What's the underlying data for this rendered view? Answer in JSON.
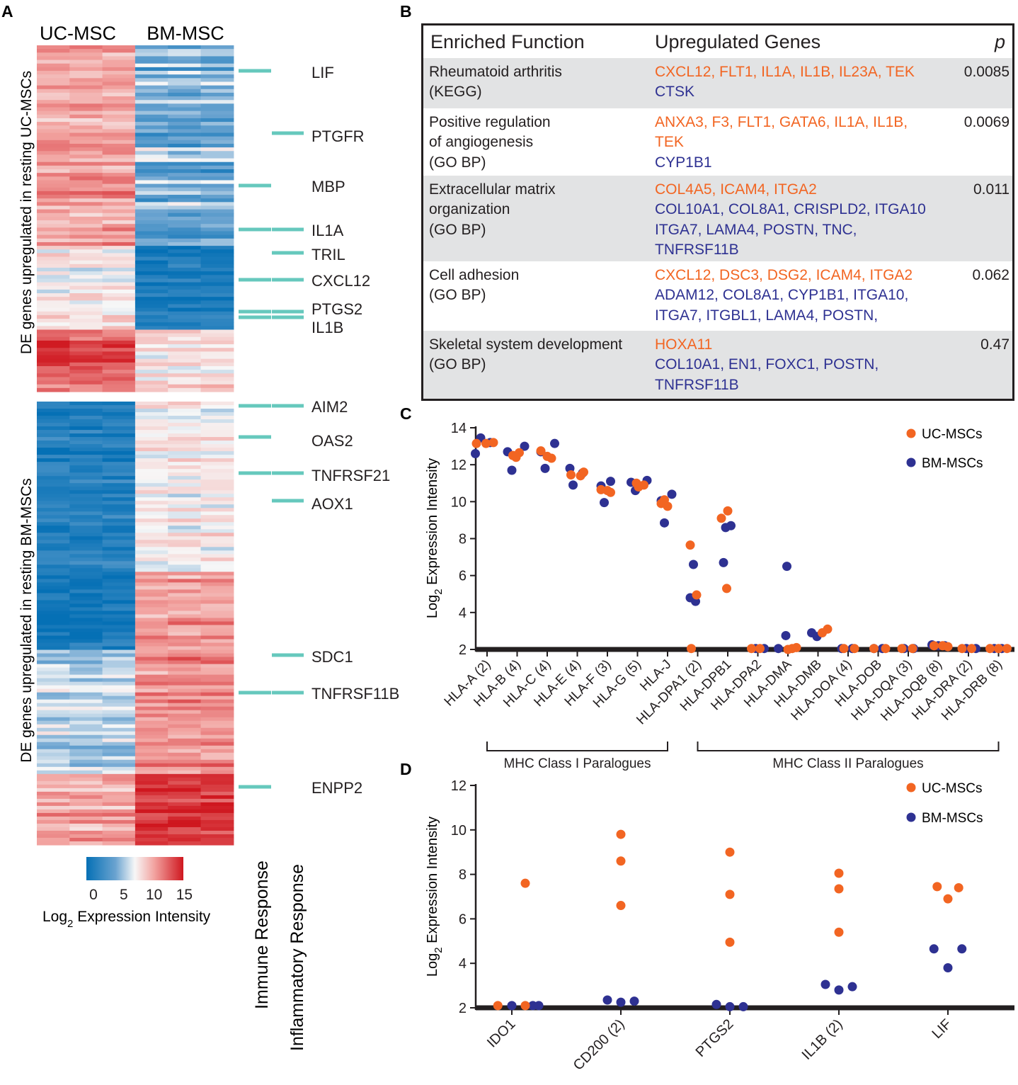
{
  "panels": {
    "A": "A",
    "B": "B",
    "C": "C",
    "D": "D"
  },
  "colors": {
    "uc": "#f26522",
    "bm": "#2e3192",
    "tick": "#66c8bd",
    "blue": "#0570b5",
    "white": "#f7f7f7",
    "red": "#cf171f"
  },
  "heatmap": {
    "columns": [
      "UC-MSC",
      "BM-MSC"
    ],
    "group_top_label": "DE genes upregulated in resting UC-MSCs",
    "group_bottom_label": "DE genes upregulated in resting BM-MSCs",
    "genes_top": [
      {
        "name": "LIF",
        "category": "immune"
      },
      {
        "name": "PTGFR",
        "category": "inflammatory"
      },
      {
        "name": "MBP",
        "category": "immune"
      },
      {
        "name": "IL1A",
        "category": "both"
      },
      {
        "name": "TRIL",
        "category": "inflammatory"
      },
      {
        "name": "CXCL12",
        "category": "both"
      },
      {
        "name": "PTGS2",
        "category": "both"
      },
      {
        "name": "IL1B",
        "category": "both"
      }
    ],
    "genes_bottom": [
      {
        "name": "AIM2",
        "category": "both"
      },
      {
        "name": "OAS2",
        "category": "immune"
      },
      {
        "name": "TNFRSF21",
        "category": "both"
      },
      {
        "name": "AOX1",
        "category": "inflammatory"
      },
      {
        "name": "SDC1",
        "category": "inflammatory"
      },
      {
        "name": "TNFRSF11B",
        "category": "both"
      },
      {
        "name": "ENPP2",
        "category": "immune"
      }
    ],
    "category_labels": [
      "Immune Response",
      "Inflammatory Response"
    ],
    "colorbar": {
      "ticks": [
        "0",
        "5",
        "10",
        "15"
      ],
      "range": [
        0,
        16
      ],
      "label_pre": "Log",
      "label_sub": "2",
      "label_post": " Expression Intensity"
    }
  },
  "table": {
    "headers": {
      "function": "Enriched Function",
      "genes": "Upregulated Genes",
      "p": "p"
    },
    "rows": [
      {
        "function": [
          "Rheumatoid arthritis",
          "(KEGG)"
        ],
        "up": [
          "CXCL12, FLT1, IL1A, IL1B, IL23A, TEK"
        ],
        "down": [
          "CTSK"
        ],
        "p": "0.0085"
      },
      {
        "function": [
          "Positive regulation",
          "of angiogenesis",
          "(GO BP)"
        ],
        "up": [
          "ANXA3, F3, FLT1, GATA6, IL1A, IL1B,",
          "TEK"
        ],
        "down": [
          "CYP1B1"
        ],
        "p": "0.0069"
      },
      {
        "function": [
          "Extracellular matrix",
          "organization",
          "(GO BP)"
        ],
        "up": [
          "COL4A5, ICAM4, ITGA2"
        ],
        "down": [
          "COL10A1, COL8A1, CRISPLD2, ITGA10",
          "ITGA7, LAMA4, POSTN, TNC,",
          "TNFRSF11B"
        ],
        "p": "0.011"
      },
      {
        "function": [
          "Cell adhesion",
          "(GO BP)"
        ],
        "up": [
          "CXCL12, DSC3, DSG2, ICAM4, ITGA2"
        ],
        "down": [
          "ADAM12, COL8A1, CYP1B1, ITGA10,",
          "ITGA7, ITGBL1, LAMA4, POSTN,"
        ],
        "p": "0.062"
      },
      {
        "function": [
          "Skeletal system development",
          "(GO BP)"
        ],
        "up": [
          "HOXA11"
        ],
        "down": [
          "COL10A1, EN1, FOXC1, POSTN,",
          "TNFRSF11B"
        ],
        "p": "0.47"
      }
    ]
  },
  "chart_data": [
    {
      "type": "scatter",
      "panel": "C",
      "ylabel_pre": "Log",
      "ylabel_sub": "2",
      "ylabel_post": " Expression Intensity",
      "ylim": [
        2,
        14
      ],
      "yticks": [
        2,
        4,
        6,
        8,
        10,
        12,
        14
      ],
      "legend": [
        "UC-MSCs",
        "BM-MSCs"
      ],
      "categories": [
        "HLA-A (2)",
        "HLA-B (4)",
        "HLA-C (4)",
        "HLA-E (4)",
        "HLA-F (3)",
        "HLA-G (5)",
        "HLA-J",
        "HLA-DPA1 (2)",
        "HLA-DPB1",
        "HLA-DPA2",
        "HLA-DMA",
        "HLA-DMB",
        "HLA-DOA (4)",
        "HLA-DOB",
        "HLA-DQA (3)",
        "HLA-DQB (8)",
        "HLA-DRA (2)",
        "HLA-DRB (8)"
      ],
      "groups": [
        {
          "label": "MHC Class I Paralogues",
          "from": 0,
          "to": 6
        },
        {
          "label": "MHC Class II Paralogues",
          "from": 7,
          "to": 17
        }
      ],
      "series": [
        {
          "name": "BM-MSCs",
          "points": [
            [
              0,
              -0.55,
              12.6
            ],
            [
              0,
              -0.3,
              13.45
            ],
            [
              0,
              0.15,
              13.2
            ],
            [
              1,
              -0.45,
              12.7
            ],
            [
              1,
              -0.25,
              11.7
            ],
            [
              1,
              0.35,
              13.0
            ],
            [
              2,
              -0.1,
              11.8
            ],
            [
              2,
              0.35,
              13.15
            ],
            [
              2,
              -0.3,
              12.7
            ],
            [
              3,
              -0.35,
              11.8
            ],
            [
              3,
              -0.2,
              10.9
            ],
            [
              3,
              0.25,
              11.55
            ],
            [
              4,
              -0.3,
              10.85
            ],
            [
              4,
              0.15,
              11.1
            ],
            [
              4,
              -0.15,
              9.95
            ],
            [
              5,
              -0.3,
              11.05
            ],
            [
              5,
              -0.1,
              10.6
            ],
            [
              5,
              0.45,
              11.15
            ],
            [
              6,
              -0.15,
              8.85
            ],
            [
              6,
              0.2,
              10.4
            ],
            [
              6,
              -0.3,
              10.05
            ],
            [
              7,
              -0.35,
              4.8
            ],
            [
              7,
              -0.2,
              6.6
            ],
            [
              7,
              -0.1,
              4.6
            ],
            [
              8,
              -0.2,
              6.7
            ],
            [
              8,
              -0.1,
              8.6
            ],
            [
              8,
              0.15,
              8.7
            ],
            [
              9,
              -0.1,
              2.05
            ],
            [
              9,
              0.3,
              2.05
            ],
            [
              10,
              -0.45,
              2.05
            ],
            [
              10,
              -0.1,
              2.75
            ],
            [
              10,
              -0.05,
              6.5
            ],
            [
              11,
              -0.3,
              2.9
            ],
            [
              11,
              -0.05,
              2.7
            ],
            [
              12,
              -0.3,
              2.05
            ],
            [
              12,
              0.2,
              2.05
            ],
            [
              13,
              -0.2,
              2.05
            ],
            [
              13,
              0.2,
              2.05
            ],
            [
              14,
              -0.2,
              2.05
            ],
            [
              14,
              0.25,
              2.05
            ],
            [
              15,
              -0.3,
              2.25
            ],
            [
              15,
              0.0,
              2.2
            ],
            [
              15,
              0.3,
              2.2
            ],
            [
              16,
              -0.1,
              2.05
            ],
            [
              16,
              0.35,
              2.05
            ],
            [
              17,
              -0.2,
              2.05
            ],
            [
              17,
              0.15,
              2.05
            ]
          ]
        },
        {
          "name": "UC-MSCs",
          "points": [
            [
              0,
              -0.5,
              13.15
            ],
            [
              0,
              -0.05,
              13.15
            ],
            [
              0,
              0.3,
              13.2
            ],
            [
              1,
              -0.2,
              12.5
            ],
            [
              1,
              0.1,
              12.65
            ],
            [
              1,
              -0.05,
              12.4
            ],
            [
              2,
              -0.3,
              12.75
            ],
            [
              2,
              0.2,
              12.35
            ],
            [
              2,
              0.0,
              12.45
            ],
            [
              3,
              -0.3,
              11.45
            ],
            [
              3,
              0.15,
              11.4
            ],
            [
              3,
              0.3,
              11.6
            ],
            [
              4,
              -0.3,
              10.65
            ],
            [
              4,
              0.15,
              10.5
            ],
            [
              4,
              0.0,
              10.6
            ],
            [
              5,
              0.05,
              10.8
            ],
            [
              5,
              0.3,
              10.9
            ],
            [
              5,
              -0.05,
              11.0
            ],
            [
              6,
              -0.3,
              9.9
            ],
            [
              6,
              -0.15,
              10.1
            ],
            [
              6,
              0.0,
              9.75
            ],
            [
              7,
              -0.35,
              7.65
            ],
            [
              7,
              -0.05,
              4.95
            ],
            [
              7,
              -0.3,
              2.05
            ],
            [
              8,
              -0.3,
              9.1
            ],
            [
              8,
              0.0,
              9.5
            ],
            [
              8,
              -0.05,
              5.3
            ],
            [
              9,
              -0.3,
              2.05
            ],
            [
              9,
              0.1,
              2.05
            ],
            [
              10,
              0.0,
              2.0
            ],
            [
              10,
              0.2,
              2.05
            ],
            [
              10,
              0.4,
              2.1
            ],
            [
              11,
              0.2,
              2.9
            ],
            [
              11,
              0.45,
              3.1
            ],
            [
              12,
              -0.2,
              2.05
            ],
            [
              12,
              0.3,
              2.05
            ],
            [
              13,
              -0.2,
              2.05
            ],
            [
              13,
              0.35,
              2.05
            ],
            [
              14,
              -0.3,
              2.05
            ],
            [
              14,
              0.2,
              2.05
            ],
            [
              15,
              -0.2,
              2.2
            ],
            [
              15,
              0.2,
              2.2
            ],
            [
              15,
              0.45,
              2.15
            ],
            [
              16,
              -0.3,
              2.05
            ],
            [
              16,
              0.15,
              2.05
            ],
            [
              17,
              -0.4,
              2.05
            ],
            [
              17,
              0.0,
              2.05
            ],
            [
              17,
              0.4,
              2.05
            ]
          ]
        }
      ]
    },
    {
      "type": "scatter",
      "panel": "D",
      "ylabel_pre": "Log",
      "ylabel_sub": "2",
      "ylabel_post": " Expression Intensity",
      "ylim": [
        2,
        12
      ],
      "yticks": [
        2,
        4,
        6,
        8,
        10,
        12
      ],
      "legend": [
        "UC-MSCs",
        "BM-MSCs"
      ],
      "categories": [
        "IDO1",
        "CD200 (2)",
        "PTGS2",
        "IL1B (2)",
        "LIF"
      ],
      "series": [
        {
          "name": "UC-MSCs",
          "points": [
            [
              0,
              -0.26,
              2.1
            ],
            [
              0,
              0.25,
              7.6
            ],
            [
              0,
              0.25,
              2.1
            ],
            [
              1,
              0.0,
              9.8
            ],
            [
              1,
              0.0,
              8.6
            ],
            [
              1,
              0.0,
              6.6
            ],
            [
              2,
              0.0,
              9.0
            ],
            [
              2,
              0.0,
              7.1
            ],
            [
              2,
              0.0,
              4.95
            ],
            [
              3,
              0.0,
              8.05
            ],
            [
              3,
              0.0,
              7.35
            ],
            [
              3,
              0.0,
              5.4
            ],
            [
              4,
              -0.2,
              7.45
            ],
            [
              4,
              0.0,
              6.9
            ],
            [
              4,
              0.2,
              7.4
            ]
          ]
        },
        {
          "name": "BM-MSCs",
          "points": [
            [
              0,
              0.0,
              2.1
            ],
            [
              0,
              0.39,
              2.1
            ],
            [
              0,
              0.5,
              2.1
            ],
            [
              1,
              -0.25,
              2.35
            ],
            [
              1,
              0.0,
              2.25
            ],
            [
              1,
              0.25,
              2.3
            ],
            [
              2,
              -0.25,
              2.15
            ],
            [
              2,
              0.0,
              2.05
            ],
            [
              2,
              0.25,
              2.05
            ],
            [
              3,
              -0.25,
              3.05
            ],
            [
              3,
              0.0,
              2.8
            ],
            [
              3,
              0.25,
              2.95
            ],
            [
              4,
              -0.26,
              4.65
            ],
            [
              4,
              0.0,
              3.8
            ],
            [
              4,
              0.26,
              4.65
            ]
          ]
        }
      ]
    }
  ]
}
